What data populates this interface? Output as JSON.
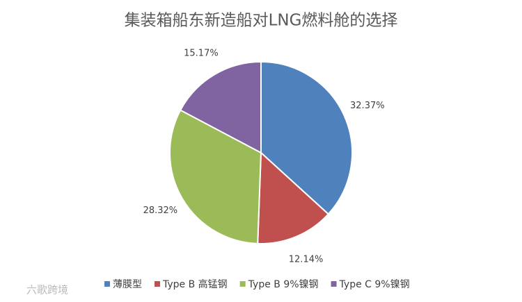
{
  "chart_data": {
    "type": "pie",
    "title": "集装箱船东新造船对LNG燃料舱的选择",
    "categories": [
      "薄膜型",
      "Type B 高锰钢",
      "Type B 9%镍钢",
      "Type C 9%镍钢"
    ],
    "values": [
      32.37,
      12.14,
      28.32,
      15.17
    ],
    "value_labels": [
      "32.37%",
      "12.14%",
      "28.32%",
      "15.17%"
    ],
    "colors": [
      "#4f81bd",
      "#c0504d",
      "#9bbb59",
      "#8064a2"
    ],
    "legend": "bottom"
  },
  "watermark": "六歌跨境"
}
